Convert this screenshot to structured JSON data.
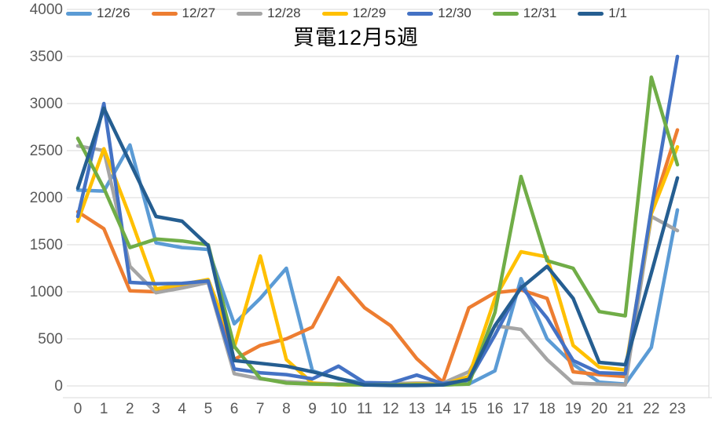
{
  "title": "買電12月5週",
  "chart_data": {
    "type": "line",
    "title": "買電12月5週",
    "xlabel": "",
    "ylabel": "",
    "x": [
      0,
      1,
      2,
      3,
      4,
      5,
      6,
      7,
      8,
      9,
      10,
      11,
      12,
      13,
      14,
      15,
      16,
      17,
      18,
      19,
      20,
      21,
      22,
      23
    ],
    "x_tick_labels": [
      "0",
      "1",
      "2",
      "3",
      "4",
      "5",
      "6",
      "7",
      "8",
      "9",
      "10",
      "11",
      "12",
      "13",
      "14",
      "15",
      "16",
      "17",
      "18",
      "19",
      "20",
      "21",
      "22",
      "23"
    ],
    "ylim": [
      0,
      4000
    ],
    "ytick_step": 500,
    "y_tick_labels": [
      "0",
      "500",
      "1000",
      "1500",
      "2000",
      "2500",
      "3000",
      "3500",
      "4000"
    ],
    "grid": true,
    "legend_position": "top",
    "series": [
      {
        "name": "12/26",
        "color": "#5B9BD5",
        "values": [
          2080,
          2070,
          2560,
          1520,
          1470,
          1450,
          660,
          930,
          1250,
          160,
          75,
          30,
          20,
          25,
          10,
          20,
          160,
          1140,
          500,
          230,
          40,
          20,
          410,
          1870
        ]
      },
      {
        "name": "12/27",
        "color": "#ED7D31",
        "values": [
          1850,
          1670,
          1010,
          1000,
          1050,
          1120,
          280,
          430,
          500,
          625,
          1150,
          830,
          640,
          290,
          40,
          830,
          990,
          1020,
          930,
          150,
          120,
          100,
          1850,
          2720
        ]
      },
      {
        "name": "12/28",
        "color": "#A5A5A5",
        "values": [
          2550,
          2500,
          1270,
          990,
          1040,
          1100,
          130,
          75,
          45,
          30,
          20,
          20,
          25,
          30,
          30,
          150,
          640,
          600,
          280,
          30,
          20,
          10,
          1800,
          1650
        ]
      },
      {
        "name": "12/29",
        "color": "#FFC000",
        "values": [
          1750,
          2520,
          1800,
          1030,
          1080,
          1130,
          410,
          1380,
          280,
          30,
          10,
          15,
          10,
          20,
          15,
          100,
          930,
          1425,
          1370,
          430,
          200,
          170,
          1830,
          2540
        ]
      },
      {
        "name": "12/30",
        "color": "#4472C4",
        "values": [
          1800,
          3000,
          1100,
          1085,
          1090,
          1115,
          180,
          140,
          120,
          75,
          210,
          35,
          30,
          115,
          25,
          60,
          540,
          1060,
          720,
          270,
          140,
          130,
          1880,
          3500
        ]
      },
      {
        "name": "12/31",
        "color": "#70AD47",
        "values": [
          2630,
          2100,
          1470,
          1560,
          1540,
          1500,
          420,
          80,
          30,
          20,
          15,
          10,
          10,
          15,
          10,
          20,
          780,
          2225,
          1330,
          1250,
          790,
          745,
          3280,
          2350
        ]
      },
      {
        "name": "1/1",
        "color": "#255E91",
        "values": [
          2100,
          2950,
          2375,
          1800,
          1750,
          1490,
          270,
          240,
          210,
          150,
          80,
          10,
          5,
          5,
          10,
          70,
          640,
          1040,
          1270,
          930,
          250,
          225,
          1200,
          2210
        ]
      }
    ],
    "colors": {
      "gridline": "#D9D9D9",
      "tick_text": "#595959",
      "legend_text": "#404040",
      "title_text": "#000000"
    }
  }
}
